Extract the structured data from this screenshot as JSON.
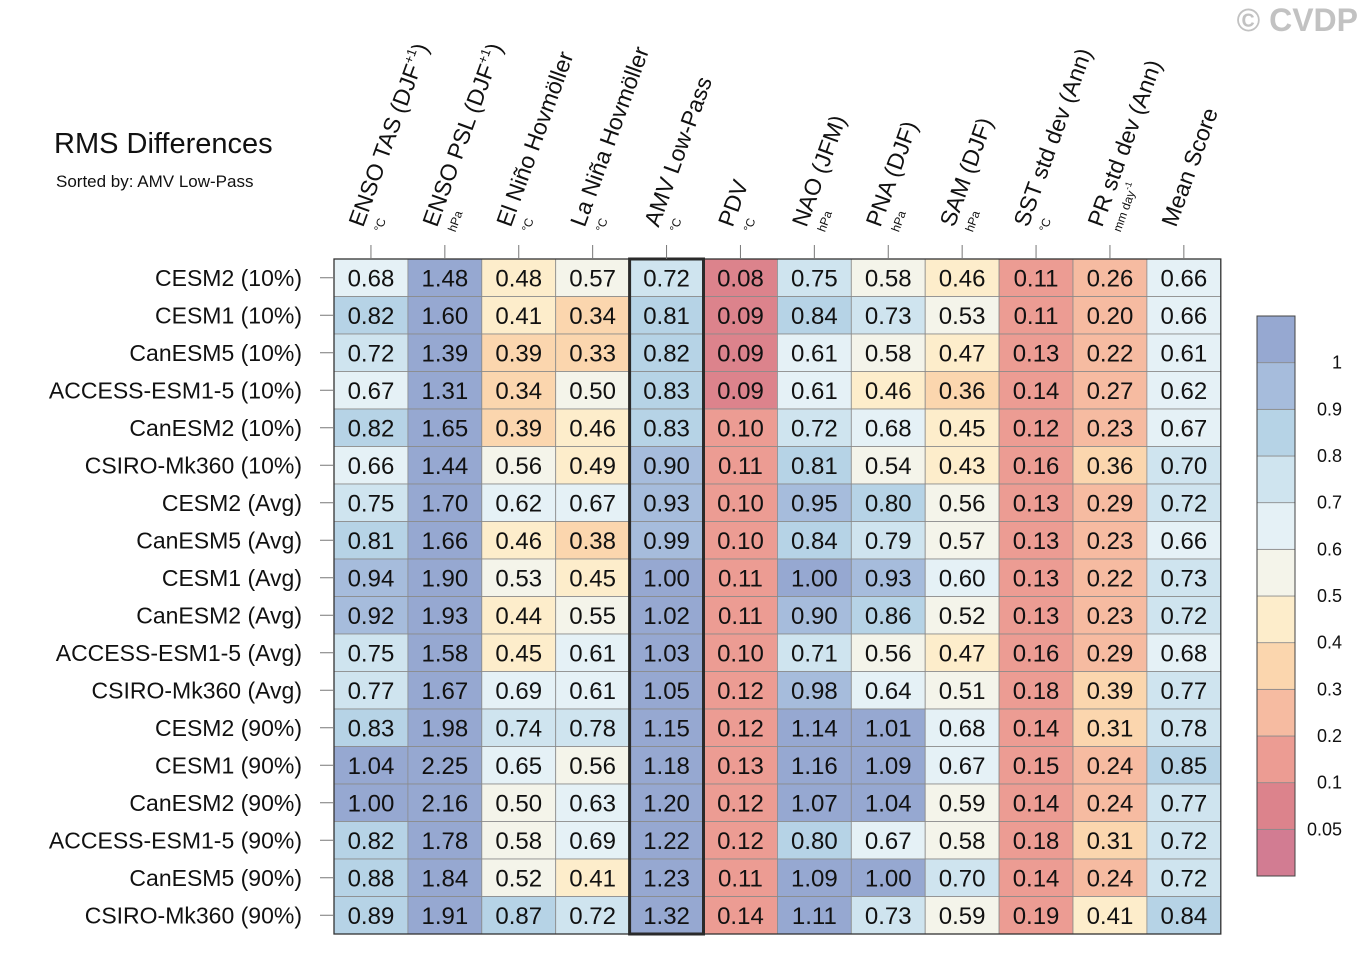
{
  "watermark": "© CVDP",
  "chart_data": {
    "type": "heatmap",
    "title": "RMS Differences",
    "subtitle": "Sorted by: AMV Low-Pass",
    "sorted_column": "AMV Low-Pass",
    "columns": [
      {
        "label": "ENSO TAS (DJF",
        "sup": "+1",
        "close": ")",
        "unit": "°C",
        "unit_sup": ""
      },
      {
        "label": "ENSO PSL (DJF",
        "sup": "+1",
        "close": ")",
        "unit": "hPa",
        "unit_sup": ""
      },
      {
        "label": "El Niño Hovmöller",
        "sup": "",
        "close": "",
        "unit": "°C",
        "unit_sup": ""
      },
      {
        "label": "La Niña Hovmöller",
        "sup": "",
        "close": "",
        "unit": "°C",
        "unit_sup": ""
      },
      {
        "label": "AMV Low-Pass",
        "sup": "",
        "close": "",
        "unit": "°C",
        "unit_sup": ""
      },
      {
        "label": "PDV",
        "sup": "",
        "close": "",
        "unit": "°C",
        "unit_sup": ""
      },
      {
        "label": "NAO (JFM)",
        "sup": "",
        "close": "",
        "unit": "hPa",
        "unit_sup": ""
      },
      {
        "label": "PNA (DJF)",
        "sup": "",
        "close": "",
        "unit": "hPa",
        "unit_sup": ""
      },
      {
        "label": "SAM (DJF)",
        "sup": "",
        "close": "",
        "unit": "hPa",
        "unit_sup": ""
      },
      {
        "label": "SST std dev (Ann)",
        "sup": "",
        "close": "",
        "unit": "°C",
        "unit_sup": ""
      },
      {
        "label": "PR std dev (Ann)",
        "sup": "",
        "close": "",
        "unit": "mm day",
        "unit_sup": "-1"
      },
      {
        "label": "Mean Score",
        "sup": "",
        "close": "",
        "unit": "",
        "unit_sup": ""
      }
    ],
    "rows": [
      "CESM2 (10%)",
      "CESM1 (10%)",
      "CanESM5 (10%)",
      "ACCESS-ESM1-5 (10%)",
      "CanESM2 (10%)",
      "CSIRO-Mk360 (10%)",
      "CESM2 (Avg)",
      "CanESM5 (Avg)",
      "CESM1 (Avg)",
      "CanESM2 (Avg)",
      "ACCESS-ESM1-5 (Avg)",
      "CSIRO-Mk360 (Avg)",
      "CESM2 (90%)",
      "CESM1 (90%)",
      "CanESM2 (90%)",
      "ACCESS-ESM1-5 (90%)",
      "CanESM5 (90%)",
      "CSIRO-Mk360 (90%)"
    ],
    "values": [
      [
        0.68,
        1.48,
        0.48,
        0.57,
        0.72,
        0.08,
        0.75,
        0.58,
        0.46,
        0.11,
        0.26,
        0.66
      ],
      [
        0.82,
        1.6,
        0.41,
        0.34,
        0.81,
        0.09,
        0.84,
        0.73,
        0.53,
        0.11,
        0.2,
        0.66
      ],
      [
        0.72,
        1.39,
        0.39,
        0.33,
        0.82,
        0.09,
        0.61,
        0.58,
        0.47,
        0.13,
        0.22,
        0.61
      ],
      [
        0.67,
        1.31,
        0.34,
        0.5,
        0.83,
        0.09,
        0.61,
        0.46,
        0.36,
        0.14,
        0.27,
        0.62
      ],
      [
        0.82,
        1.65,
        0.39,
        0.46,
        0.83,
        0.1,
        0.72,
        0.68,
        0.45,
        0.12,
        0.23,
        0.67
      ],
      [
        0.66,
        1.44,
        0.56,
        0.49,
        0.9,
        0.11,
        0.81,
        0.54,
        0.43,
        0.16,
        0.36,
        0.7
      ],
      [
        0.75,
        1.7,
        0.62,
        0.67,
        0.93,
        0.1,
        0.95,
        0.8,
        0.56,
        0.13,
        0.29,
        0.72
      ],
      [
        0.81,
        1.66,
        0.46,
        0.38,
        0.99,
        0.1,
        0.84,
        0.79,
        0.57,
        0.13,
        0.23,
        0.66
      ],
      [
        0.94,
        1.9,
        0.53,
        0.45,
        1.0,
        0.11,
        1.0,
        0.93,
        0.6,
        0.13,
        0.22,
        0.73
      ],
      [
        0.92,
        1.93,
        0.44,
        0.55,
        1.02,
        0.11,
        0.9,
        0.86,
        0.52,
        0.13,
        0.23,
        0.72
      ],
      [
        0.75,
        1.58,
        0.45,
        0.61,
        1.03,
        0.1,
        0.71,
        0.56,
        0.47,
        0.16,
        0.29,
        0.68
      ],
      [
        0.77,
        1.67,
        0.69,
        0.61,
        1.05,
        0.12,
        0.98,
        0.64,
        0.51,
        0.18,
        0.39,
        0.77
      ],
      [
        0.83,
        1.98,
        0.74,
        0.78,
        1.15,
        0.12,
        1.14,
        1.01,
        0.68,
        0.14,
        0.31,
        0.78
      ],
      [
        1.04,
        2.25,
        0.65,
        0.56,
        1.18,
        0.13,
        1.16,
        1.09,
        0.67,
        0.15,
        0.24,
        0.85
      ],
      [
        1.0,
        2.16,
        0.5,
        0.63,
        1.2,
        0.12,
        1.07,
        1.04,
        0.59,
        0.14,
        0.24,
        0.77
      ],
      [
        0.82,
        1.78,
        0.58,
        0.69,
        1.22,
        0.12,
        0.8,
        0.67,
        0.58,
        0.18,
        0.31,
        0.72
      ],
      [
        0.88,
        1.84,
        0.52,
        0.41,
        1.23,
        0.11,
        1.09,
        1.0,
        0.7,
        0.14,
        0.24,
        0.72
      ],
      [
        0.89,
        1.91,
        0.87,
        0.72,
        1.32,
        0.14,
        1.11,
        0.73,
        0.59,
        0.19,
        0.41,
        0.84
      ]
    ],
    "colorbar": {
      "levels": [
        0.05,
        0.1,
        0.2,
        0.3,
        0.4,
        0.5,
        0.6,
        0.7,
        0.8,
        0.9,
        1
      ],
      "tick_labels": [
        "0.05",
        "0.1",
        "0.2",
        "0.3",
        "0.4",
        "0.5",
        "0.6",
        "0.7",
        "0.8",
        "0.9",
        "1"
      ],
      "colors": [
        "#d27c92",
        "#dc838c",
        "#ec9c93",
        "#f6bba1",
        "#fbd6ae",
        "#fdedcb",
        "#f4f4ea",
        "#e5f1f6",
        "#cfe4ef",
        "#b6d3e6",
        "#a6bcdc",
        "#96a8d1"
      ]
    }
  }
}
